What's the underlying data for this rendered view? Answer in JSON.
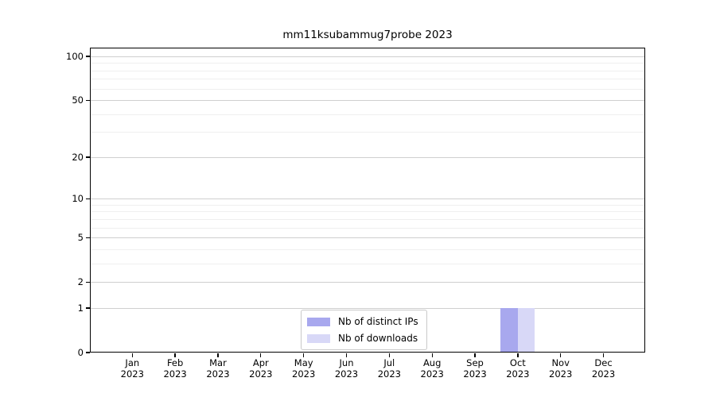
{
  "chart_data": {
    "type": "bar",
    "title": "mm11ksubammug7probe 2023",
    "categories": [
      {
        "month": "Jan",
        "year": "2023"
      },
      {
        "month": "Feb",
        "year": "2023"
      },
      {
        "month": "Mar",
        "year": "2023"
      },
      {
        "month": "Apr",
        "year": "2023"
      },
      {
        "month": "May",
        "year": "2023"
      },
      {
        "month": "Jun",
        "year": "2023"
      },
      {
        "month": "Jul",
        "year": "2023"
      },
      {
        "month": "Aug",
        "year": "2023"
      },
      {
        "month": "Sep",
        "year": "2023"
      },
      {
        "month": "Oct",
        "year": "2023"
      },
      {
        "month": "Nov",
        "year": "2023"
      },
      {
        "month": "Dec",
        "year": "2023"
      }
    ],
    "series": [
      {
        "name": "Nb of distinct IPs",
        "color": "#a8a8ee",
        "values": [
          0,
          0,
          0,
          0,
          0,
          0,
          0,
          0,
          0,
          1,
          0,
          0
        ]
      },
      {
        "name": "Nb of downloads",
        "color": "#d8d8f7",
        "values": [
          0,
          0,
          0,
          0,
          0,
          0,
          0,
          0,
          0,
          1,
          0,
          0
        ]
      }
    ],
    "xlabel": "",
    "ylabel": "",
    "yscale": "log1p",
    "ylim": [
      0,
      113
    ],
    "yticks": [
      0,
      1,
      2,
      5,
      10,
      20,
      50,
      100
    ],
    "minor_yticks": [
      3,
      4,
      6,
      7,
      8,
      9,
      30,
      40,
      60,
      70,
      80,
      90
    ],
    "grid": "horizontal",
    "legend_position": "inside lower center-right"
  }
}
